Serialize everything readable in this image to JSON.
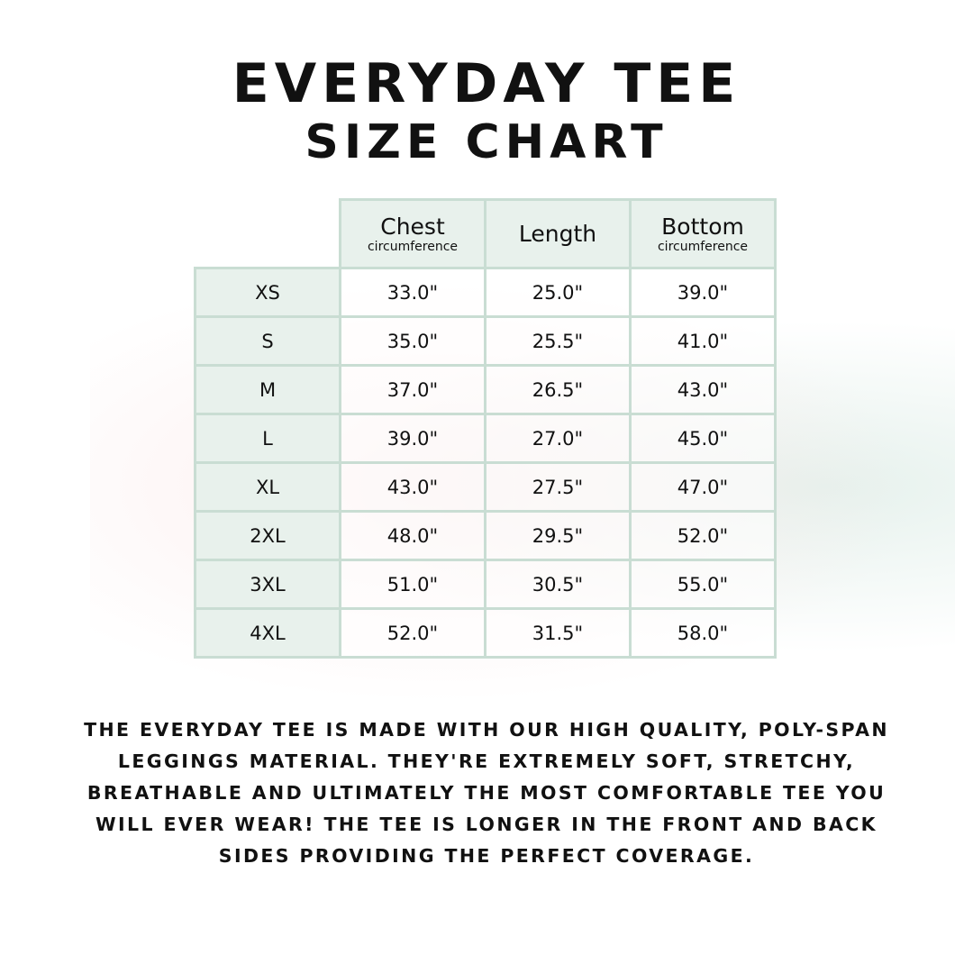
{
  "title_line1": "EVERYDAY TEE",
  "title_line2": "SIZE CHART",
  "columns": [
    {
      "main": "Chest",
      "sub": "circumference"
    },
    {
      "main": "Length",
      "sub": ""
    },
    {
      "main": "Bottom",
      "sub": "circumference"
    }
  ],
  "rows": [
    {
      "size": "XS",
      "chest": "33.0\"",
      "length": "25.0\"",
      "bottom": "39.0\""
    },
    {
      "size": "S",
      "chest": "35.0\"",
      "length": "25.5\"",
      "bottom": "41.0\""
    },
    {
      "size": "M",
      "chest": "37.0\"",
      "length": "26.5\"",
      "bottom": "43.0\""
    },
    {
      "size": "L",
      "chest": "39.0\"",
      "length": "27.0\"",
      "bottom": "45.0\""
    },
    {
      "size": "XL",
      "chest": "43.0\"",
      "length": "27.5\"",
      "bottom": "47.0\""
    },
    {
      "size": "2XL",
      "chest": "48.0\"",
      "length": "29.5\"",
      "bottom": "52.0\""
    },
    {
      "size": "3XL",
      "chest": "51.0\"",
      "length": "30.5\"",
      "bottom": "55.0\""
    },
    {
      "size": "4XL",
      "chest": "52.0\"",
      "length": "31.5\"",
      "bottom": "58.0\""
    }
  ],
  "description": "The Everyday Tee is made with our high quality, poly-span leggings material. They're extremely soft, stretchy, breathable and ultimately the most comfortable tee you will ever wear! The tee is longer in the front and back sides providing the perfect coverage.",
  "colors": {
    "header_fill": "#e8f1ec",
    "border": "#c9ddd3"
  }
}
